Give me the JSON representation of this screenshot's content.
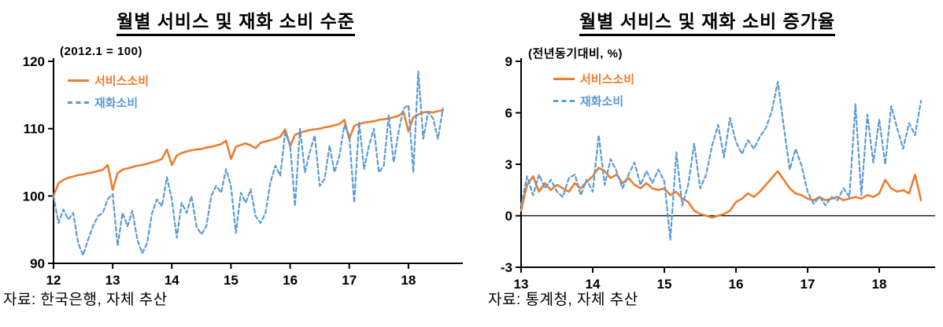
{
  "page": {
    "background": "#ffffff",
    "text_color": "#000000"
  },
  "colors": {
    "service_orange": "#ED7D31",
    "goods_blue": "#5B9BD5",
    "axis": "#000000"
  },
  "chart_data": [
    {
      "type": "line",
      "title": "월별 서비스 및 재화 소비 수준",
      "subtitle": "(2012.1 = 100)",
      "source": "자료: 한국은행, 자체 추산",
      "legend_position": "top-left-inside",
      "grid": false,
      "zero_line": false,
      "xlim": [
        2012,
        2018.92
      ],
      "ylim": [
        90,
        120
      ],
      "yticks": [
        90,
        100,
        110,
        120
      ],
      "xticks": [
        {
          "value": 2012,
          "label": "12"
        },
        {
          "value": 2013,
          "label": "13"
        },
        {
          "value": 2014,
          "label": "14"
        },
        {
          "value": 2015,
          "label": "15"
        },
        {
          "value": 2016,
          "label": "16"
        },
        {
          "value": 2017,
          "label": "17"
        },
        {
          "value": 2018,
          "label": "18"
        }
      ],
      "x_start": 2012.0,
      "x_step": "monthly",
      "series": [
        {
          "name": "서비스소비",
          "color": "#ED7D31",
          "style": "solid",
          "values": [
            100.0,
            101.9,
            102.4,
            102.7,
            102.9,
            103.1,
            103.2,
            103.4,
            103.5,
            103.7,
            103.9,
            104.6,
            100.9,
            103.4,
            103.9,
            104.1,
            104.3,
            104.5,
            104.6,
            104.8,
            105.0,
            105.2,
            105.5,
            106.9,
            104.6,
            106.0,
            106.4,
            106.6,
            106.8,
            106.9,
            107.0,
            107.2,
            107.3,
            107.5,
            107.7,
            108.2,
            105.5,
            107.3,
            107.6,
            107.8,
            107.5,
            107.1,
            107.9,
            108.1,
            108.3,
            108.5,
            108.8,
            109.9,
            107.4,
            109.1,
            109.4,
            109.6,
            109.8,
            109.9,
            110.0,
            110.2,
            110.3,
            110.5,
            110.7,
            111.3,
            108.5,
            110.4,
            110.7,
            110.9,
            111.0,
            111.1,
            111.3,
            111.4,
            111.5,
            111.7,
            111.9,
            112.5,
            109.6,
            111.7,
            112.1,
            112.4,
            112.5,
            112.4,
            112.6,
            112.7
          ]
        },
        {
          "name": "재화소비",
          "color": "#5B9BD5",
          "style": "dashed",
          "values": [
            100.0,
            96.0,
            98.0,
            96.5,
            97.5,
            93.0,
            91.2,
            93.5,
            95.5,
            97.0,
            97.5,
            99.5,
            100.3,
            92.6,
            97.5,
            95.5,
            97.8,
            93.5,
            91.5,
            93.0,
            97.5,
            99.5,
            98.5,
            102.8,
            99.5,
            93.8,
            99.0,
            97.5,
            100.0,
            95.5,
            94.3,
            95.5,
            100.0,
            101.5,
            100.5,
            104.0,
            101.5,
            94.5,
            100.5,
            99.0,
            101.0,
            97.0,
            96.0,
            97.5,
            102.0,
            104.5,
            103.0,
            109.5,
            107.5,
            98.5,
            110.0,
            103.5,
            106.5,
            109.0,
            101.5,
            102.5,
            107.5,
            103.5,
            106.0,
            110.5,
            109.0,
            99.0,
            111.0,
            104.0,
            107.5,
            110.0,
            103.5,
            104.5,
            112.0,
            105.0,
            109.5,
            113.0,
            113.5,
            103.5,
            118.5,
            108.5,
            112.5,
            111.5,
            108.5,
            113.0
          ]
        }
      ]
    },
    {
      "type": "line",
      "title": "월별 서비스 및 재화 소비 증가율",
      "subtitle": "(전년동기대비, %)",
      "source": "자료: 통계청, 자체 추산",
      "legend_position": "top-left-inside",
      "grid": false,
      "zero_line": true,
      "xlim": [
        2013,
        2018.78
      ],
      "ylim": [
        -3,
        9
      ],
      "yticks": [
        -3,
        0,
        3,
        6,
        9
      ],
      "xticks": [
        {
          "value": 2013,
          "label": "13"
        },
        {
          "value": 2014,
          "label": "14"
        },
        {
          "value": 2015,
          "label": "15"
        },
        {
          "value": 2016,
          "label": "16"
        },
        {
          "value": 2017,
          "label": "17"
        },
        {
          "value": 2018,
          "label": "18"
        }
      ],
      "x_start": 2013.0,
      "x_step": "monthly",
      "series": [
        {
          "name": "서비스소비",
          "color": "#ED7D31",
          "style": "solid",
          "values": [
            0.3,
            1.8,
            2.3,
            1.4,
            1.9,
            1.5,
            1.8,
            1.6,
            1.4,
            1.9,
            1.6,
            2.0,
            2.3,
            2.8,
            2.6,
            2.2,
            2.4,
            1.9,
            2.2,
            1.8,
            1.6,
            1.9,
            1.6,
            1.5,
            1.6,
            1.2,
            1.4,
            1.0,
            0.8,
            0.3,
            0.1,
            0.0,
            -0.1,
            0.0,
            0.1,
            0.3,
            0.8,
            1.0,
            1.3,
            1.1,
            1.4,
            1.8,
            2.2,
            2.6,
            2.1,
            1.6,
            1.3,
            1.2,
            1.0,
            0.9,
            1.1,
            0.9,
            1.0,
            1.1,
            0.9,
            1.0,
            1.1,
            1.0,
            1.2,
            1.1,
            1.3,
            2.1,
            1.6,
            1.4,
            1.5,
            1.3,
            2.4,
            0.9
          ]
        },
        {
          "name": "재화소비",
          "color": "#5B9BD5",
          "style": "dashed",
          "values": [
            0.6,
            2.3,
            1.2,
            2.4,
            1.6,
            2.1,
            1.4,
            1.1,
            2.2,
            2.4,
            1.2,
            2.1,
            1.4,
            4.7,
            1.8,
            3.3,
            2.6,
            1.6,
            2.4,
            3.1,
            1.8,
            2.6,
            1.9,
            2.7,
            2.0,
            -1.4,
            3.7,
            0.6,
            1.8,
            4.2,
            1.6,
            2.4,
            4.1,
            5.3,
            3.4,
            5.7,
            4.3,
            3.6,
            4.4,
            3.9,
            4.6,
            5.1,
            6.1,
            7.8,
            5.2,
            2.7,
            3.9,
            2.9,
            1.4,
            0.7,
            1.1,
            0.6,
            1.1,
            0.9,
            1.6,
            1.1,
            6.5,
            1.2,
            5.9,
            3.1,
            5.6,
            3.0,
            6.4,
            5.1,
            3.9,
            5.4,
            4.7,
            6.7
          ]
        }
      ]
    }
  ]
}
